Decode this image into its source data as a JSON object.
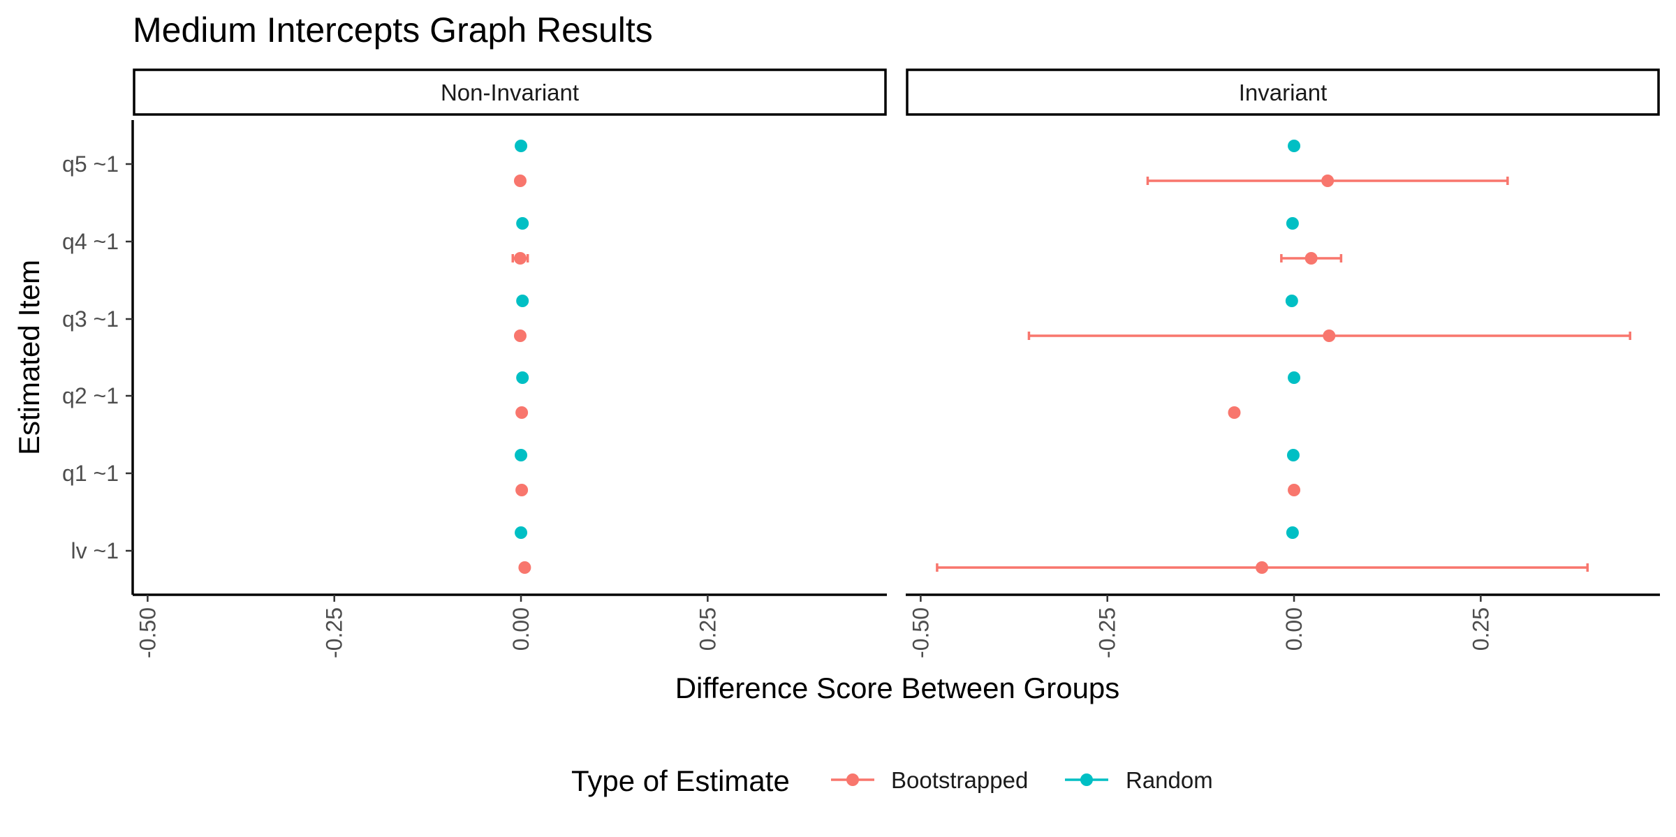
{
  "chart_data": {
    "type": "scatter",
    "title": "Medium Intercepts Graph Results",
    "xlabel": "Difference Score Between Groups",
    "ylabel": "Estimated Item",
    "xlim": [
      -0.52,
      0.49
    ],
    "x_ticks": [
      -0.5,
      -0.25,
      0.0,
      0.25
    ],
    "x_tick_labels": [
      "-0.50",
      "-0.25",
      "0.00",
      "0.25"
    ],
    "categories": [
      "lv ~1",
      "q1 ~1",
      "q2 ~1",
      "q3 ~1",
      "q4 ~1",
      "q5 ~1"
    ],
    "grid": false,
    "legend": {
      "title": "Type of Estimate",
      "position": "bottom",
      "entries": [
        {
          "name": "Bootstrapped",
          "color": "#F8766D"
        },
        {
          "name": "Random",
          "color": "#00BFC4"
        }
      ]
    },
    "panels": [
      {
        "label": "Non-Invariant",
        "series": [
          {
            "name": "Bootstrapped",
            "color": "#F8766D",
            "points": [
              {
                "category": "lv ~1",
                "value": 0.005,
                "lower": 0.005,
                "upper": 0.005
              },
              {
                "category": "q1 ~1",
                "value": 0.001,
                "lower": 0.001,
                "upper": 0.001
              },
              {
                "category": "q2 ~1",
                "value": 0.001,
                "lower": 0.001,
                "upper": 0.001
              },
              {
                "category": "q3 ~1",
                "value": -0.001,
                "lower": -0.001,
                "upper": -0.001
              },
              {
                "category": "q4 ~1",
                "value": -0.001,
                "lower": -0.011,
                "upper": 0.009
              },
              {
                "category": "q5 ~1",
                "value": -0.001,
                "lower": -0.001,
                "upper": -0.001
              }
            ]
          },
          {
            "name": "Random",
            "color": "#00BFC4",
            "points": [
              {
                "category": "lv ~1",
                "value": 0.0
              },
              {
                "category": "q1 ~1",
                "value": 0.0
              },
              {
                "category": "q2 ~1",
                "value": 0.002
              },
              {
                "category": "q3 ~1",
                "value": 0.002
              },
              {
                "category": "q4 ~1",
                "value": 0.002
              },
              {
                "category": "q5 ~1",
                "value": 0.0
              }
            ]
          }
        ]
      },
      {
        "label": "Invariant",
        "series": [
          {
            "name": "Bootstrapped",
            "color": "#F8766D",
            "points": [
              {
                "category": "lv ~1",
                "value": -0.043,
                "lower": -0.478,
                "upper": 0.393
              },
              {
                "category": "q1 ~1",
                "value": 0.0,
                "lower": 0.0,
                "upper": 0.0
              },
              {
                "category": "q2 ~1",
                "value": -0.08,
                "lower": -0.085,
                "upper": -0.075
              },
              {
                "category": "q3 ~1",
                "value": 0.047,
                "lower": -0.355,
                "upper": 0.45
              },
              {
                "category": "q4 ~1",
                "value": 0.023,
                "lower": -0.017,
                "upper": 0.063
              },
              {
                "category": "q5 ~1",
                "value": 0.045,
                "lower": -0.196,
                "upper": 0.286
              }
            ]
          },
          {
            "name": "Random",
            "color": "#00BFC4",
            "points": [
              {
                "category": "lv ~1",
                "value": -0.002
              },
              {
                "category": "q1 ~1",
                "value": -0.001
              },
              {
                "category": "q2 ~1",
                "value": 0.0
              },
              {
                "category": "q3 ~1",
                "value": -0.003
              },
              {
                "category": "q4 ~1",
                "value": -0.002
              },
              {
                "category": "q5 ~1",
                "value": 0.0
              }
            ]
          }
        ]
      }
    ]
  }
}
